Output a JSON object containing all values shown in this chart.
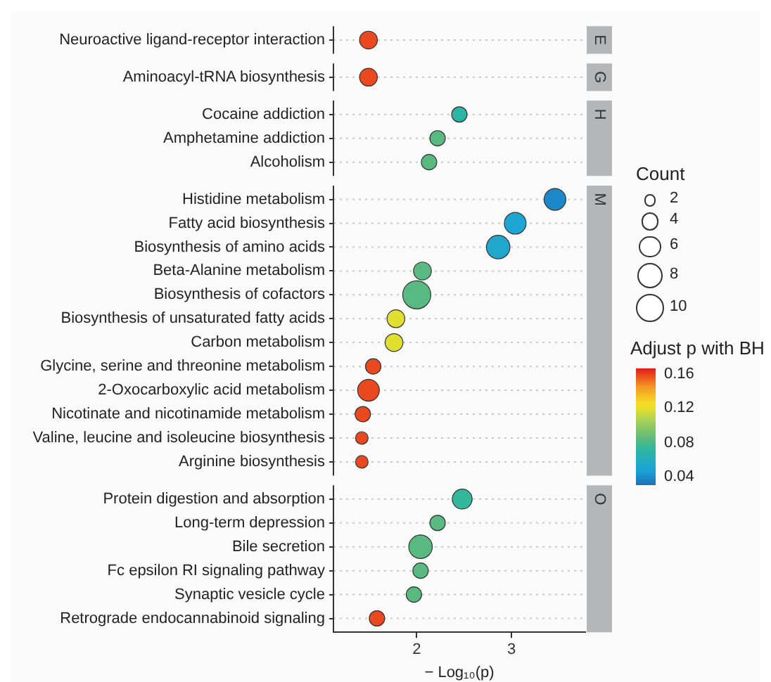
{
  "chart_data": {
    "type": "bubble",
    "orientation": "horizontal",
    "categories": [
      "Neuroactive ligand-receptor interaction",
      "Aminoacyl-tRNA biosynthesis",
      "Cocaine addiction",
      "Amphetamine addiction",
      "Alcoholism",
      "Histidine metabolism",
      "Fatty acid biosynthesis",
      "Biosynthesis of amino acids",
      "Beta-Alanine metabolism",
      "Biosynthesis of cofactors",
      "Biosynthesis of unsaturated fatty acids",
      "Carbon metabolism",
      "Glycine, serine and threonine metabolism",
      "2-Oxocarboxylic acid metabolism",
      "Nicotinate and nicotinamide metabolism",
      "Valine, leucine and isoleucine biosynthesis",
      "Arginine biosynthesis",
      "Protein digestion and absorption",
      "Long-term depression",
      "Bile secretion",
      "Fc epsilon RI signaling pathway",
      "Synaptic vesicle cycle",
      "Retrograde endocannabinoid signaling"
    ],
    "values": [
      1.49,
      1.49,
      2.45,
      2.22,
      2.13,
      3.46,
      3.04,
      2.86,
      2.06,
      2.0,
      1.78,
      1.76,
      1.54,
      1.49,
      1.43,
      1.42,
      1.42,
      2.48,
      2.22,
      2.04,
      2.04,
      1.97,
      1.58
    ],
    "sizes": [
      4,
      4,
      3,
      3,
      3,
      6,
      6,
      7,
      4,
      10,
      4,
      4,
      3,
      6,
      3,
      2,
      2,
      5,
      3,
      7,
      3,
      3,
      3
    ],
    "cvalues": [
      0.16,
      0.16,
      0.072,
      0.085,
      0.085,
      0.04,
      0.052,
      0.055,
      0.085,
      0.085,
      0.12,
      0.12,
      0.16,
      0.16,
      0.16,
      0.16,
      0.16,
      0.075,
      0.085,
      0.085,
      0.085,
      0.085,
      0.16
    ],
    "y2_categories": [
      "E",
      "G",
      "H",
      null,
      null,
      "M",
      null,
      null,
      null,
      null,
      null,
      null,
      null,
      null,
      null,
      null,
      null,
      "O",
      null,
      null,
      null,
      null,
      null
    ],
    "xlim": [
      1.12,
      3.78
    ],
    "xticks": [
      2,
      3
    ],
    "xlabel": "− Log₁₀(p)",
    "grid": "y",
    "marker": "circle",
    "legend_title": "Count",
    "size_legend": [
      2,
      4,
      6,
      8,
      10
    ],
    "clabel": "Adjust p with BH",
    "clim": [
      0.032,
      0.168
    ],
    "cticks": [
      0.04,
      0.08,
      0.12,
      0.16
    ]
  }
}
